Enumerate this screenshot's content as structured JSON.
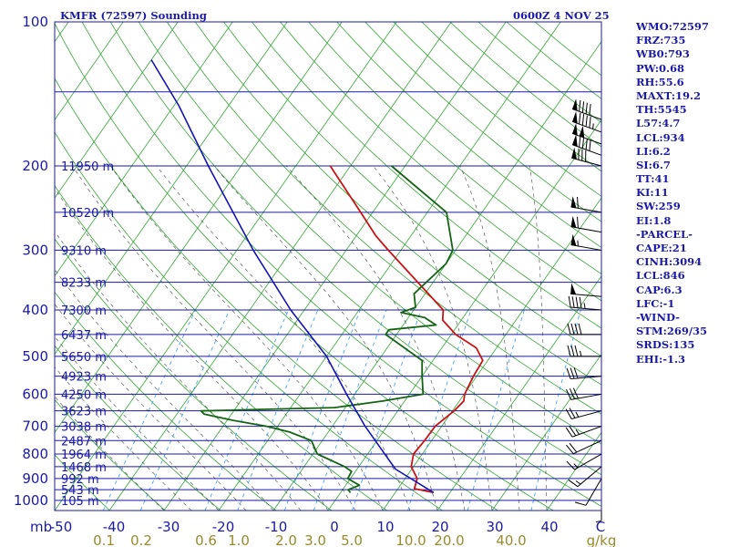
{
  "header": {
    "station": "KMFR (72597) Sounding",
    "time": "0600Z  4 NOV 25"
  },
  "indices": [
    "WMO:72597",
    "FRZ:735",
    "WB0:793",
    "PW:0.68",
    "RH:55.6",
    "MAXT:19.2",
    "TH:5545",
    "L57:4.7",
    "LCL:934",
    "LI:6.2",
    "SI:6.7",
    "TT:41",
    "KI:11",
    "SW:259",
    "EI:1.8",
    "-PARCEL-",
    "CAPE:21",
    "CINH:3094",
    "LCL:846",
    "CAP:6.3",
    "LFC:-1",
    "-WIND-",
    "STM:269/35",
    "SRDS:135",
    "EHI:-1.3"
  ],
  "colors": {
    "text": "#1a1aa6",
    "isobar": "#1a1aa6",
    "isotherm": "#33a633",
    "dry_adiabat": "#33a633",
    "moist_adiabat": "#444444",
    "mixing_ratio": "#3399ff",
    "temperature": "#c81414",
    "dewpoint": "#146414",
    "parcel": "#1414b4",
    "barb": "#000000"
  },
  "chart_data": {
    "type": "skew-t",
    "title": "KMFR (72597) Sounding",
    "x_axis": {
      "label": "mb",
      "ticks": [
        -50,
        -40,
        -30,
        -20,
        -10,
        0,
        10,
        20,
        30,
        40,
        "C"
      ],
      "range": [
        -50,
        50
      ]
    },
    "y_axis": {
      "ticks": [
        100,
        200,
        300,
        400,
        500,
        600,
        700,
        800,
        900,
        1000
      ],
      "range": [
        1050,
        100
      ],
      "scale": "log"
    },
    "mixing_ratio_labels": [
      "0.1",
      "0.2",
      "0.6",
      "1.0",
      "2.0",
      "3.0",
      "5.0",
      "10.0",
      "20.0",
      "40.0",
      "g/kg"
    ],
    "heights": [
      {
        "p": 200,
        "label": "11950 m"
      },
      {
        "p": 250,
        "label": "10520 m"
      },
      {
        "p": 300,
        "label": "9310 m"
      },
      {
        "p": 350,
        "label": "8233 m"
      },
      {
        "p": 400,
        "label": "7300 m"
      },
      {
        "p": 450,
        "label": "6437 m"
      },
      {
        "p": 500,
        "label": "5650 m"
      },
      {
        "p": 550,
        "label": "4923 m"
      },
      {
        "p": 600,
        "label": "4250 m"
      },
      {
        "p": 650,
        "label": "3623 m"
      },
      {
        "p": 700,
        "label": "3038 m"
      },
      {
        "p": 750,
        "label": "2487 m"
      },
      {
        "p": 800,
        "label": "1964 m"
      },
      {
        "p": 850,
        "label": "1468 m"
      },
      {
        "p": 900,
        "label": "992 m"
      },
      {
        "p": 950,
        "label": "543 m"
      },
      {
        "p": 1000,
        "label": "105 m"
      }
    ],
    "series": [
      {
        "key": "temperature",
        "points": [
          [
            963,
            17
          ],
          [
            945,
            13
          ],
          [
            900,
            12.2
          ],
          [
            850,
            9.6
          ],
          [
            800,
            8.4
          ],
          [
            750,
            8.7
          ],
          [
            700,
            8.8
          ],
          [
            650,
            10.3
          ],
          [
            620,
            10.8
          ],
          [
            600,
            10.1
          ],
          [
            550,
            9.4
          ],
          [
            510,
            9.1
          ],
          [
            480,
            6.3
          ],
          [
            450,
            0.8
          ],
          [
            420,
            -3.4
          ],
          [
            400,
            -4.6
          ],
          [
            350,
            -12.8
          ],
          [
            300,
            -22.3
          ],
          [
            280,
            -26.4
          ],
          [
            250,
            -32.2
          ],
          [
            200,
            -43.7
          ]
        ]
      },
      {
        "key": "dewpoint",
        "points": [
          [
            963,
            1.8
          ],
          [
            950,
            1.0
          ],
          [
            930,
            2.5
          ],
          [
            900,
            -0.5
          ],
          [
            870,
            -0.7
          ],
          [
            850,
            -2.6
          ],
          [
            800,
            -9.2
          ],
          [
            750,
            -12
          ],
          [
            720,
            -17
          ],
          [
            700,
            -22
          ],
          [
            680,
            -29
          ],
          [
            660,
            -35
          ],
          [
            650,
            -36
          ],
          [
            640,
            -12
          ],
          [
            620,
            -4
          ],
          [
            600,
            2.5
          ],
          [
            550,
            0
          ],
          [
            510,
            -2
          ],
          [
            450,
            -12
          ],
          [
            440,
            -12
          ],
          [
            430,
            -4
          ],
          [
            415,
            -7
          ],
          [
            405,
            -12
          ],
          [
            395,
            -10
          ],
          [
            370,
            -12
          ],
          [
            320,
            -10
          ],
          [
            300,
            -10.5
          ],
          [
            250,
            -16.5
          ],
          [
            200,
            -32.5
          ]
        ]
      },
      {
        "key": "parcel",
        "points": [
          [
            963,
            17
          ],
          [
            860,
            7
          ],
          [
            700,
            -4
          ],
          [
            600,
            -11.5
          ],
          [
            500,
            -20
          ],
          [
            400,
            -32.5
          ],
          [
            300,
            -47
          ],
          [
            200,
            -66
          ],
          [
            150,
            -79
          ],
          [
            120,
            -90
          ]
        ]
      }
    ],
    "wind_barbs": [
      {
        "p": 160,
        "dir": 290,
        "spd": 90
      },
      {
        "p": 170,
        "dir": 290,
        "spd": 95
      },
      {
        "p": 180,
        "dir": 290,
        "spd": 100
      },
      {
        "p": 190,
        "dir": 290,
        "spd": 90
      },
      {
        "p": 200,
        "dir": 285,
        "spd": 80
      },
      {
        "p": 250,
        "dir": 280,
        "spd": 60
      },
      {
        "p": 275,
        "dir": 280,
        "spd": 60
      },
      {
        "p": 300,
        "dir": 280,
        "spd": 55
      },
      {
        "p": 375,
        "dir": 275,
        "spd": 50
      },
      {
        "p": 400,
        "dir": 275,
        "spd": 45
      },
      {
        "p": 450,
        "dir": 270,
        "spd": 40
      },
      {
        "p": 500,
        "dir": 270,
        "spd": 35
      },
      {
        "p": 550,
        "dir": 265,
        "spd": 30
      },
      {
        "p": 600,
        "dir": 260,
        "spd": 30
      },
      {
        "p": 650,
        "dir": 255,
        "spd": 25
      },
      {
        "p": 700,
        "dir": 250,
        "spd": 25
      },
      {
        "p": 750,
        "dir": 245,
        "spd": 20
      },
      {
        "p": 800,
        "dir": 240,
        "spd": 15
      },
      {
        "p": 850,
        "dir": 230,
        "spd": 15
      },
      {
        "p": 900,
        "dir": 210,
        "spd": 10
      },
      {
        "p": 950,
        "dir": 180,
        "spd": 5
      }
    ]
  }
}
